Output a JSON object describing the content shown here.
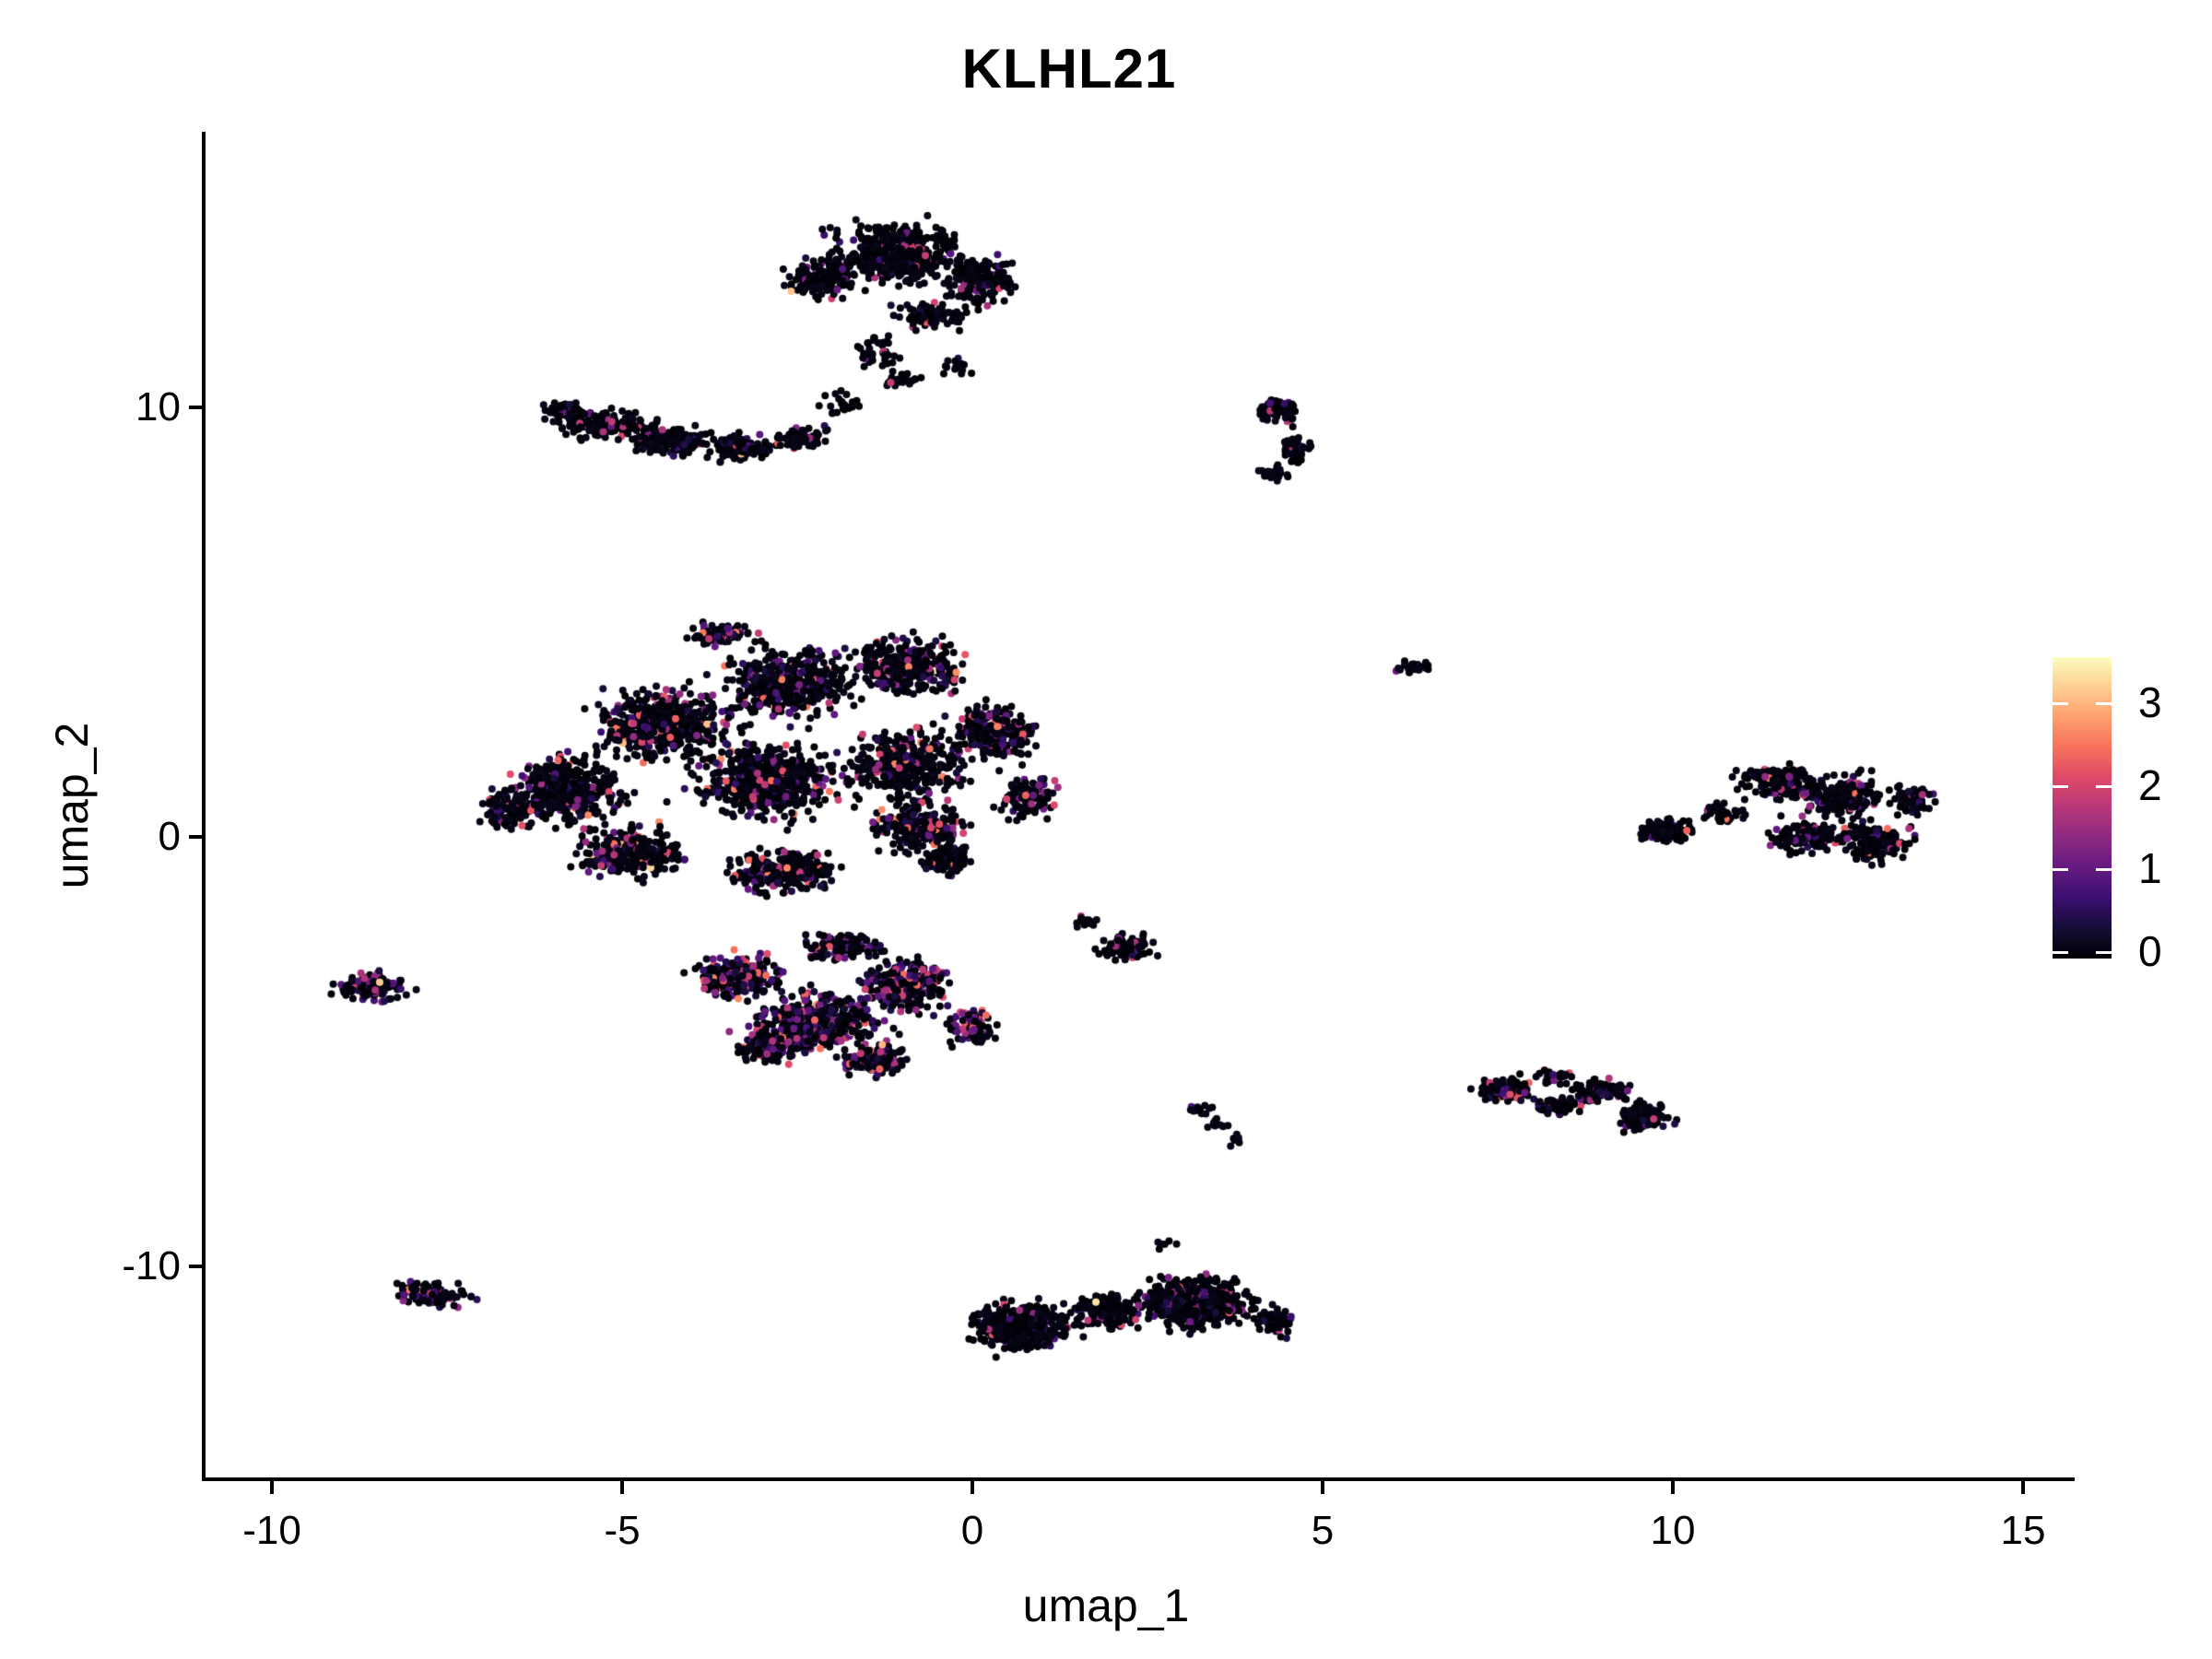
{
  "title": "KLHL21",
  "axes": {
    "x": {
      "label": "umap_1",
      "ticks": [
        -10,
        -5,
        0,
        5,
        10,
        15
      ]
    },
    "y": {
      "label": "umap_2",
      "ticks": [
        10,
        0,
        -10
      ]
    }
  },
  "colorbar": {
    "ticks": [
      3,
      2,
      1,
      0
    ],
    "min": 0,
    "max": 3.55,
    "palette": "magma",
    "stops": [
      [
        0.0,
        "#000004"
      ],
      [
        0.1,
        "#140e36"
      ],
      [
        0.2,
        "#3b0f70"
      ],
      [
        0.3,
        "#641a80"
      ],
      [
        0.4,
        "#8c2981"
      ],
      [
        0.5,
        "#b73779"
      ],
      [
        0.6,
        "#de4968"
      ],
      [
        0.7,
        "#f7705c"
      ],
      [
        0.8,
        "#fe9f6d"
      ],
      [
        0.9,
        "#fece91"
      ],
      [
        1.0,
        "#fcfdbf"
      ]
    ]
  },
  "chart_data": {
    "type": "scatter",
    "title": "KLHL21",
    "xlabel": "umap_1",
    "ylabel": "umap_2",
    "xlim": [
      -11,
      15.7
    ],
    "ylim": [
      -15,
      16.4
    ],
    "grid": false,
    "legend_position": "right",
    "point_radius_px": 4,
    "expression_range": [
      0,
      3.55
    ],
    "clusters": [
      {
        "name": "top-blob",
        "colored_frac": 0.1,
        "expr_max": 2.3,
        "hot_frac": 0.01,
        "blobs": [
          {
            "x": -1.1,
            "y": 13.55,
            "rx": 1.35,
            "ry": 1.05,
            "n": 500
          },
          {
            "x": -2.15,
            "y": 13.0,
            "rx": 0.7,
            "ry": 0.75,
            "n": 150
          },
          {
            "x": 0.15,
            "y": 12.95,
            "rx": 0.75,
            "ry": 0.85,
            "n": 170
          },
          {
            "x": -0.6,
            "y": 12.15,
            "rx": 0.75,
            "ry": 0.5,
            "n": 90
          }
        ]
      },
      {
        "name": "top-neck",
        "colored_frac": 0.06,
        "expr_max": 2.0,
        "hot_frac": 0,
        "blobs": [
          {
            "x": -1.35,
            "y": 11.3,
            "rx": 0.45,
            "ry": 0.7,
            "n": 40
          },
          {
            "x": -1.0,
            "y": 10.65,
            "rx": 0.5,
            "ry": 0.3,
            "n": 26
          },
          {
            "x": -0.25,
            "y": 10.95,
            "rx": 0.5,
            "ry": 0.35,
            "n": 16
          }
        ]
      },
      {
        "name": "upper-left-band",
        "colored_frac": 0.13,
        "expr_max": 2.4,
        "hot_frac": 0.01,
        "blobs": [
          {
            "x": -5.85,
            "y": 9.9,
            "rx": 0.5,
            "ry": 0.42,
            "n": 60
          },
          {
            "x": -5.25,
            "y": 9.6,
            "rx": 0.95,
            "ry": 0.5,
            "n": 150
          },
          {
            "x": -4.3,
            "y": 9.2,
            "rx": 0.95,
            "ry": 0.5,
            "n": 165
          },
          {
            "x": -3.3,
            "y": 9.05,
            "rx": 0.8,
            "ry": 0.48,
            "n": 120
          },
          {
            "x": -2.45,
            "y": 9.3,
            "rx": 0.6,
            "ry": 0.4,
            "n": 60
          },
          {
            "x": -1.85,
            "y": 10.05,
            "rx": 0.5,
            "ry": 0.42,
            "n": 22,
            "cf": 0.05
          }
        ]
      },
      {
        "name": "top-right-comma",
        "colored_frac": 0.08,
        "expr_max": 2.0,
        "hot_frac": 0,
        "blobs": [
          {
            "x": 4.35,
            "y": 9.95,
            "rx": 0.45,
            "ry": 0.5,
            "n": 70
          },
          {
            "x": 4.6,
            "y": 9.05,
            "rx": 0.33,
            "ry": 0.55,
            "n": 55
          },
          {
            "x": 4.3,
            "y": 8.45,
            "rx": 0.3,
            "ry": 0.33,
            "n": 28
          }
        ]
      },
      {
        "name": "central-main-blob",
        "colored_frac": 0.2,
        "expr_max": 2.7,
        "hot_frac": 0.03,
        "blobs": [
          {
            "x": -6.65,
            "y": 0.65,
            "rx": 0.6,
            "ry": 0.7,
            "n": 120
          },
          {
            "x": -5.8,
            "y": 1.05,
            "rx": 1.25,
            "ry": 1.15,
            "n": 400
          },
          {
            "x": -4.4,
            "y": 2.6,
            "rx": 1.45,
            "ry": 1.25,
            "n": 500
          },
          {
            "x": -2.6,
            "y": 3.6,
            "rx": 1.35,
            "ry": 1.15,
            "n": 460
          },
          {
            "x": -0.9,
            "y": 3.95,
            "rx": 1.15,
            "ry": 0.95,
            "n": 340
          },
          {
            "x": -2.95,
            "y": 1.3,
            "rx": 1.65,
            "ry": 1.35,
            "n": 540
          },
          {
            "x": -0.95,
            "y": 1.6,
            "rx": 1.3,
            "ry": 1.25,
            "n": 400
          },
          {
            "x": 0.3,
            "y": 2.4,
            "rx": 0.9,
            "ry": 1.0,
            "n": 220
          },
          {
            "x": -4.9,
            "y": -0.35,
            "rx": 1.15,
            "ry": 0.9,
            "n": 290
          },
          {
            "x": -2.7,
            "y": -0.8,
            "rx": 1.25,
            "ry": 0.8,
            "n": 270
          },
          {
            "x": -0.8,
            "y": 0.2,
            "rx": 1.0,
            "ry": 0.8,
            "n": 230
          },
          {
            "x": 0.8,
            "y": 0.95,
            "rx": 0.6,
            "ry": 0.8,
            "n": 130
          },
          {
            "x": -3.6,
            "y": 4.7,
            "rx": 0.9,
            "ry": 0.45,
            "n": 80
          },
          {
            "x": -0.35,
            "y": -0.55,
            "rx": 0.5,
            "ry": 0.42,
            "n": 140,
            "cf": 0.08
          }
        ]
      },
      {
        "name": "lower-central-blob",
        "colored_frac": 0.4,
        "expr_max": 2.5,
        "hot_frac": 0.02,
        "blobs": [
          {
            "x": -3.35,
            "y": -3.3,
            "rx": 1.0,
            "ry": 0.8,
            "n": 270
          },
          {
            "x": -2.2,
            "y": -4.3,
            "rx": 1.3,
            "ry": 1.0,
            "n": 420
          },
          {
            "x": -0.95,
            "y": -3.45,
            "rx": 1.0,
            "ry": 0.9,
            "n": 300
          },
          {
            "x": -2.9,
            "y": -4.85,
            "rx": 0.8,
            "ry": 0.6,
            "n": 170
          },
          {
            "x": -1.4,
            "y": -5.2,
            "rx": 0.8,
            "ry": 0.55,
            "n": 150
          },
          {
            "x": -1.85,
            "y": -2.55,
            "rx": 0.9,
            "ry": 0.5,
            "n": 120,
            "cf": 0.28
          },
          {
            "x": 0.0,
            "y": -4.4,
            "rx": 0.5,
            "ry": 0.6,
            "n": 90
          }
        ]
      },
      {
        "name": "small-mid-right",
        "colored_frac": 0.15,
        "expr_max": 2.2,
        "hot_frac": 0,
        "blobs": [
          {
            "x": 2.2,
            "y": -2.55,
            "rx": 0.62,
            "ry": 0.5,
            "n": 85
          },
          {
            "x": 1.6,
            "y": -1.95,
            "rx": 0.3,
            "ry": 0.25,
            "n": 16
          }
        ]
      },
      {
        "name": "left-small",
        "colored_frac": 0.3,
        "expr_max": 2.2,
        "hot_frac": 0.02,
        "blobs": [
          {
            "x": -8.6,
            "y": -3.5,
            "rx": 0.72,
            "ry": 0.5,
            "n": 115
          }
        ]
      },
      {
        "name": "tiny-strand",
        "colored_frac": 0.12,
        "expr_max": 1.8,
        "hot_frac": 0,
        "blobs": [
          {
            "x": 3.25,
            "y": -6.35,
            "rx": 0.28,
            "ry": 0.28,
            "n": 12
          },
          {
            "x": 3.5,
            "y": -6.7,
            "rx": 0.25,
            "ry": 0.3,
            "n": 12
          },
          {
            "x": 3.72,
            "y": -7.05,
            "rx": 0.22,
            "ry": 0.22,
            "n": 8
          }
        ]
      },
      {
        "name": "right-island",
        "colored_frac": 0.2,
        "expr_max": 2.5,
        "hot_frac": 0.02,
        "blobs": [
          {
            "x": 7.6,
            "y": -5.9,
            "rx": 0.65,
            "ry": 0.45,
            "n": 110,
            "cf": 0.3
          },
          {
            "x": 8.4,
            "y": -6.25,
            "rx": 0.55,
            "ry": 0.35,
            "n": 70,
            "cf": 0.25
          },
          {
            "x": 9.0,
            "y": -5.9,
            "rx": 0.6,
            "ry": 0.4,
            "n": 90
          },
          {
            "x": 9.6,
            "y": -6.5,
            "rx": 0.6,
            "ry": 0.5,
            "n": 115,
            "cf": 0.08
          },
          {
            "x": 8.3,
            "y": -5.6,
            "rx": 0.4,
            "ry": 0.3,
            "n": 30
          }
        ]
      },
      {
        "name": "right-big",
        "colored_frac": 0.17,
        "expr_max": 2.6,
        "hot_frac": 0.02,
        "blobs": [
          {
            "x": 9.9,
            "y": 0.15,
            "rx": 0.55,
            "ry": 0.42,
            "n": 135,
            "cf": 0.05
          },
          {
            "x": 10.7,
            "y": 0.55,
            "rx": 0.45,
            "ry": 0.35,
            "n": 45,
            "cf": 0.1
          },
          {
            "x": 11.5,
            "y": 1.3,
            "rx": 0.8,
            "ry": 0.6,
            "n": 150
          },
          {
            "x": 12.35,
            "y": 0.9,
            "rx": 0.95,
            "ry": 0.8,
            "n": 210
          },
          {
            "x": 12.9,
            "y": -0.15,
            "rx": 0.7,
            "ry": 0.7,
            "n": 165
          },
          {
            "x": 11.95,
            "y": 0.0,
            "rx": 0.85,
            "ry": 0.6,
            "n": 125,
            "cf": 0.22
          },
          {
            "x": 13.4,
            "y": 0.85,
            "rx": 0.5,
            "ry": 0.5,
            "n": 70
          }
        ]
      },
      {
        "name": "tiny-dot",
        "colored_frac": 0.2,
        "expr_max": 2.4,
        "hot_frac": 0.1,
        "blobs": [
          {
            "x": 6.3,
            "y": 3.95,
            "rx": 0.3,
            "ry": 0.26,
            "n": 30
          }
        ]
      },
      {
        "name": "bottom-cluster",
        "colored_frac": 0.12,
        "expr_max": 2.4,
        "hot_frac": 0.015,
        "blobs": [
          {
            "x": 0.7,
            "y": -11.4,
            "rx": 1.05,
            "ry": 0.8,
            "n": 450,
            "cf": 0.08
          },
          {
            "x": 1.9,
            "y": -11.05,
            "rx": 0.75,
            "ry": 0.6,
            "n": 170
          },
          {
            "x": 3.2,
            "y": -10.85,
            "rx": 1.15,
            "ry": 0.9,
            "n": 510,
            "cf": 0.17
          },
          {
            "x": 4.35,
            "y": -11.3,
            "rx": 0.45,
            "ry": 0.5,
            "n": 60,
            "cf": 0.15
          },
          {
            "x": 2.7,
            "y": -9.5,
            "rx": 0.3,
            "ry": 0.25,
            "n": 6,
            "cf": 0
          }
        ]
      },
      {
        "name": "bottom-left-small",
        "colored_frac": 0.28,
        "expr_max": 2.7,
        "hot_frac": 0.05,
        "blobs": [
          {
            "x": -7.75,
            "y": -10.65,
            "rx": 0.82,
            "ry": 0.42,
            "n": 105,
            "rot": -10
          }
        ]
      }
    ]
  }
}
